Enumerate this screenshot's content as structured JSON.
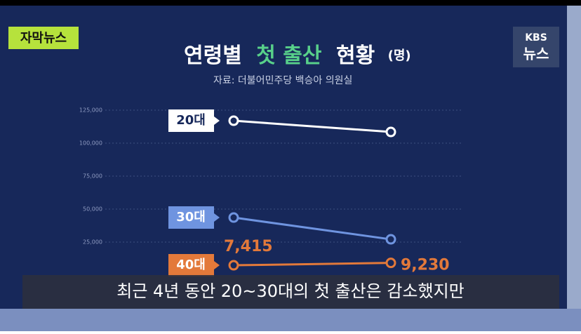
{
  "broadcast": {
    "badge": "자막뉴스",
    "logo_top": "KBS",
    "logo_bottom": "뉴스",
    "caption": "최근 4년 동안 20~30대의 첫 출산은 감소했지만"
  },
  "chart_data": {
    "type": "line",
    "title": [
      "연령별",
      "첫 출산",
      "현황"
    ],
    "unit": "(명)",
    "source": "자료: 더불어민주당 백승아 의원실",
    "categories": [
      null,
      null
    ],
    "series": [
      {
        "name": "20대",
        "color": "#ffffff",
        "values": [
          117000,
          108500
        ]
      },
      {
        "name": "30대",
        "color": "#6f94e0",
        "values": [
          43600,
          27100
        ]
      },
      {
        "name": "40대",
        "color": "#e3793a",
        "values": [
          7415,
          9230
        ],
        "value_labels": [
          "7,415",
          "9,230"
        ]
      }
    ],
    "ylim": [
      0,
      125000
    ],
    "yticks": [
      {
        "value": 25000,
        "label": "25,000"
      },
      {
        "value": 50000,
        "label": "50,000"
      },
      {
        "value": 75000,
        "label": "75,000"
      },
      {
        "value": 100000,
        "label": "100,000"
      },
      {
        "value": 125000,
        "label": "125,000"
      }
    ],
    "grid": true
  }
}
